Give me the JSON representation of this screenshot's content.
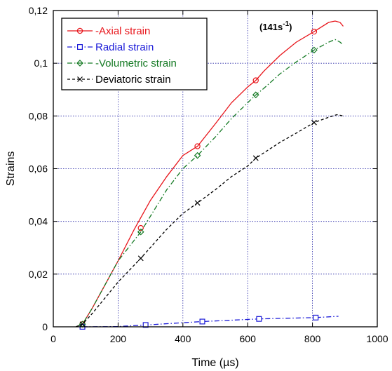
{
  "chart_data": {
    "type": "line",
    "xlabel": "Time (µs)",
    "ylabel": "Strains",
    "xlim": [
      0,
      1000
    ],
    "ylim": [
      0,
      0.12
    ],
    "xticks": [
      0,
      200,
      400,
      600,
      800,
      1000
    ],
    "yticks": [
      0,
      0.02,
      0.04,
      0.06,
      0.08,
      0.1,
      0.12
    ],
    "xtick_labels": [
      "0",
      "200",
      "400",
      "600",
      "800",
      "1000"
    ],
    "ytick_labels": [
      "0",
      "0,02",
      "0,04",
      "0,06",
      "0,08",
      "0,1",
      "0,12"
    ],
    "grid": true,
    "legend_position": "top-left",
    "annotation": {
      "base": "(141s",
      "sup": "-1",
      "close": ")"
    },
    "series": [
      {
        "name": "-Axial strain",
        "color": "#e8151b",
        "marker": "circle",
        "dash": "solid",
        "x": [
          70,
          90,
          120,
          160,
          200,
          250,
          300,
          350,
          400,
          445,
          500,
          550,
          600,
          625,
          650,
          700,
          750,
          805,
          850,
          870,
          885,
          895
        ],
        "y": [
          0,
          0.001,
          0.007,
          0.016,
          0.025,
          0.037,
          0.048,
          0.057,
          0.065,
          0.0685,
          0.077,
          0.085,
          0.091,
          0.0935,
          0.097,
          0.103,
          0.108,
          0.112,
          0.1155,
          0.116,
          0.1155,
          0.114
        ],
        "marker_x": [
          90,
          270,
          445,
          625,
          805
        ],
        "marker_y": [
          0.001,
          0.0375,
          0.0685,
          0.0935,
          0.112
        ]
      },
      {
        "name": "Radial strain",
        "color": "#1a1ad8",
        "marker": "square",
        "dash": "dashdot",
        "x": [
          90,
          200,
          285,
          460,
          635,
          810,
          880
        ],
        "y": [
          0,
          0.0001,
          0.0007,
          0.002,
          0.003,
          0.0035,
          0.004
        ],
        "marker_x": [
          90,
          285,
          460,
          635,
          810
        ],
        "marker_y": [
          0,
          0.0007,
          0.002,
          0.003,
          0.0035
        ]
      },
      {
        "name": "-Volumetric strain",
        "color": "#157a24",
        "marker": "diamond",
        "dash": "dashdot",
        "x": [
          70,
          90,
          120,
          160,
          200,
          270,
          350,
          400,
          445,
          500,
          550,
          600,
          625,
          650,
          700,
          750,
          805,
          850,
          870,
          885,
          895
        ],
        "y": [
          0,
          0.001,
          0.007,
          0.016,
          0.025,
          0.036,
          0.052,
          0.06,
          0.065,
          0.072,
          0.079,
          0.085,
          0.088,
          0.0905,
          0.096,
          0.1005,
          0.105,
          0.108,
          0.109,
          0.108,
          0.107
        ],
        "marker_x": [
          90,
          270,
          445,
          625,
          805
        ],
        "marker_y": [
          0.001,
          0.036,
          0.065,
          0.088,
          0.105
        ]
      },
      {
        "name": "Deviatoric strain",
        "color": "#000000",
        "marker": "x",
        "dash": "dashed",
        "x": [
          70,
          90,
          120,
          160,
          200,
          270,
          350,
          400,
          445,
          500,
          550,
          600,
          625,
          650,
          700,
          750,
          805,
          850,
          875,
          895
        ],
        "y": [
          0,
          0.001,
          0.005,
          0.011,
          0.017,
          0.026,
          0.037,
          0.043,
          0.047,
          0.052,
          0.057,
          0.061,
          0.064,
          0.066,
          0.07,
          0.0735,
          0.0775,
          0.0795,
          0.0805,
          0.08
        ],
        "marker_x": [
          90,
          270,
          445,
          625,
          805
        ],
        "marker_y": [
          0.001,
          0.026,
          0.047,
          0.064,
          0.0775
        ]
      }
    ]
  }
}
